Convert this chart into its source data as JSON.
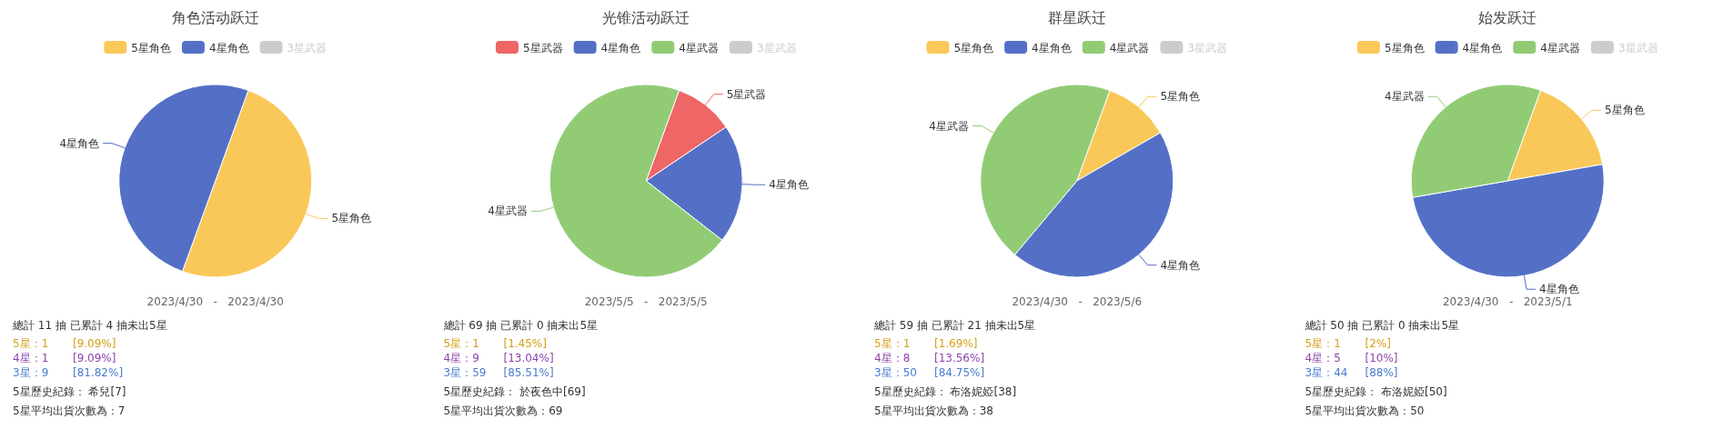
{
  "chart_data": [
    {
      "type": "pie",
      "title": "角色活动跃迁",
      "legend": "top",
      "categories": [
        "5星角色",
        "4星角色",
        "3星武器"
      ],
      "values": [
        50,
        50,
        null
      ],
      "colors": [
        "#fac858",
        "#5470c6",
        "#cccccc"
      ],
      "annotations": [
        "2023/4/30   -   2023/4/30",
        "總計 11 抽 已累計 4 抽未出5星",
        "5星：1       [9.09%]",
        "4星：1       [9.09%]",
        "3星：9       [81.82%]",
        "5星歷史紀錄： 希兒[7]",
        "5星平均出貨次數為：7"
      ]
    },
    {
      "type": "pie",
      "title": "光锥活动跃迁",
      "legend": "top",
      "categories": [
        "5星武器",
        "4星角色",
        "4星武器",
        "3星武器"
      ],
      "values": [
        10,
        20,
        70,
        null
      ],
      "colors": [
        "#ee6666",
        "#5470c6",
        "#91cc75",
        "#cccccc"
      ],
      "annotations": [
        "2023/5/5   -   2023/5/5",
        "總計 69 抽 已累計 0 抽未出5星",
        "5星：1       [1.45%]",
        "4星：9       [13.04%]",
        "3星：59     [85.51%]",
        "5星歷史紀錄： 於夜色中[69]",
        "5星平均出貨次數為：69"
      ]
    },
    {
      "type": "pie",
      "title": "群星跃迁",
      "legend": "top",
      "categories": [
        "5星角色",
        "4星角色",
        "4星武器",
        "3星武器"
      ],
      "values": [
        11.1,
        44.4,
        44.4,
        null
      ],
      "colors": [
        "#fac858",
        "#5470c6",
        "#91cc75",
        "#cccccc"
      ],
      "annotations": [
        "2023/4/30   -   2023/5/6",
        "總計 59 抽 已累計 21 抽未出5星",
        "5星：1       [1.69%]",
        "4星：8       [13.56%]",
        "3星：50     [84.75%]",
        "5星歷史紀錄： 布洛妮婭[38]",
        "5星平均出貨次數為：38"
      ]
    },
    {
      "type": "pie",
      "title": "始发跃迁",
      "legend": "top",
      "categories": [
        "5星角色",
        "4星角色",
        "4星武器",
        "3星武器"
      ],
      "values": [
        16.7,
        50,
        33.3,
        null
      ],
      "colors": [
        "#fac858",
        "#5470c6",
        "#91cc75",
        "#cccccc"
      ],
      "annotations": [
        "2023/4/30   -   2023/5/1",
        "總計 50 抽 已累計 0 抽未出5星",
        "5星：1       [2%]",
        "4星：5       [10%]",
        "3星：44     [88%]",
        "5星歷史紀錄： 布洛妮婭[50]",
        "5星平均出貨次數為：50"
      ]
    }
  ]
}
